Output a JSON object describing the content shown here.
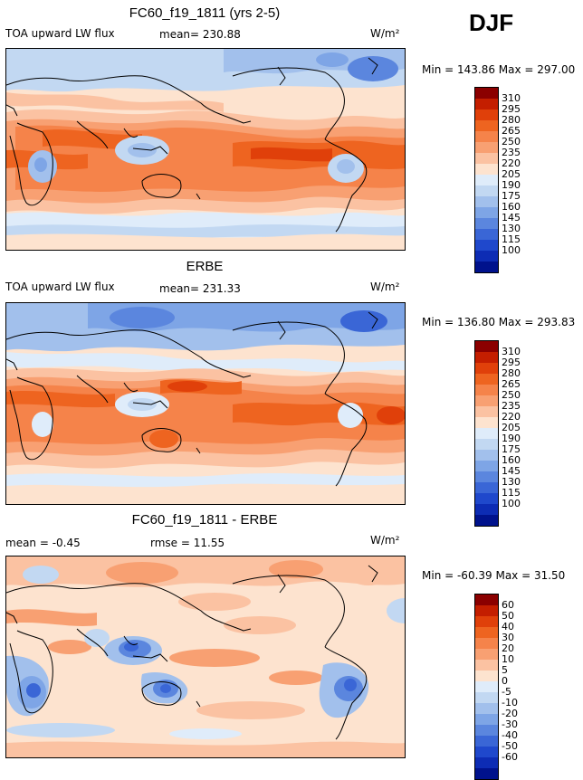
{
  "season": "DJF",
  "colors": {
    "warm": [
      "#8b0000",
      "#c41e00",
      "#e0400a",
      "#ee6420",
      "#f5834a",
      "#f8a072",
      "#fbc2a2",
      "#fde3cf"
    ],
    "cool": [
      "#dfecfa",
      "#c2d8f2",
      "#a2c0ec",
      "#7ea5e6",
      "#5b86de",
      "#3a66d6",
      "#1f48cc",
      "#0d2cb4",
      "#00128c"
    ]
  },
  "panels": [
    {
      "title": "FC60_f19_1811 (yrs 2-5)",
      "left_label": "TOA upward LW flux",
      "stat_label": "mean= 230.88",
      "units": "W/m²",
      "minmax": "Min = 143.86 Max = 297.00",
      "ticks": [
        "310",
        "295",
        "280",
        "265",
        "250",
        "235",
        "220",
        "205",
        "190",
        "175",
        "160",
        "145",
        "130",
        "115",
        "100"
      ]
    },
    {
      "title": "ERBE",
      "left_label": "TOA upward LW flux",
      "stat_label": "mean= 231.33",
      "units": "W/m²",
      "minmax": "Min = 136.80 Max = 293.83",
      "ticks": [
        "310",
        "295",
        "280",
        "265",
        "250",
        "235",
        "220",
        "205",
        "190",
        "175",
        "160",
        "145",
        "130",
        "115",
        "100"
      ]
    },
    {
      "title": "FC60_f19_1811 - ERBE",
      "left_label": "mean =  -0.45",
      "stat_label": "rmse =  11.55",
      "units": "W/m²",
      "minmax": "Min = -60.39 Max =  31.50",
      "ticks": [
        "60",
        "50",
        "40",
        "30",
        "20",
        "10",
        "5",
        "0",
        "-5",
        "-10",
        "-20",
        "-30",
        "-40",
        "-50",
        "-60"
      ]
    }
  ]
}
